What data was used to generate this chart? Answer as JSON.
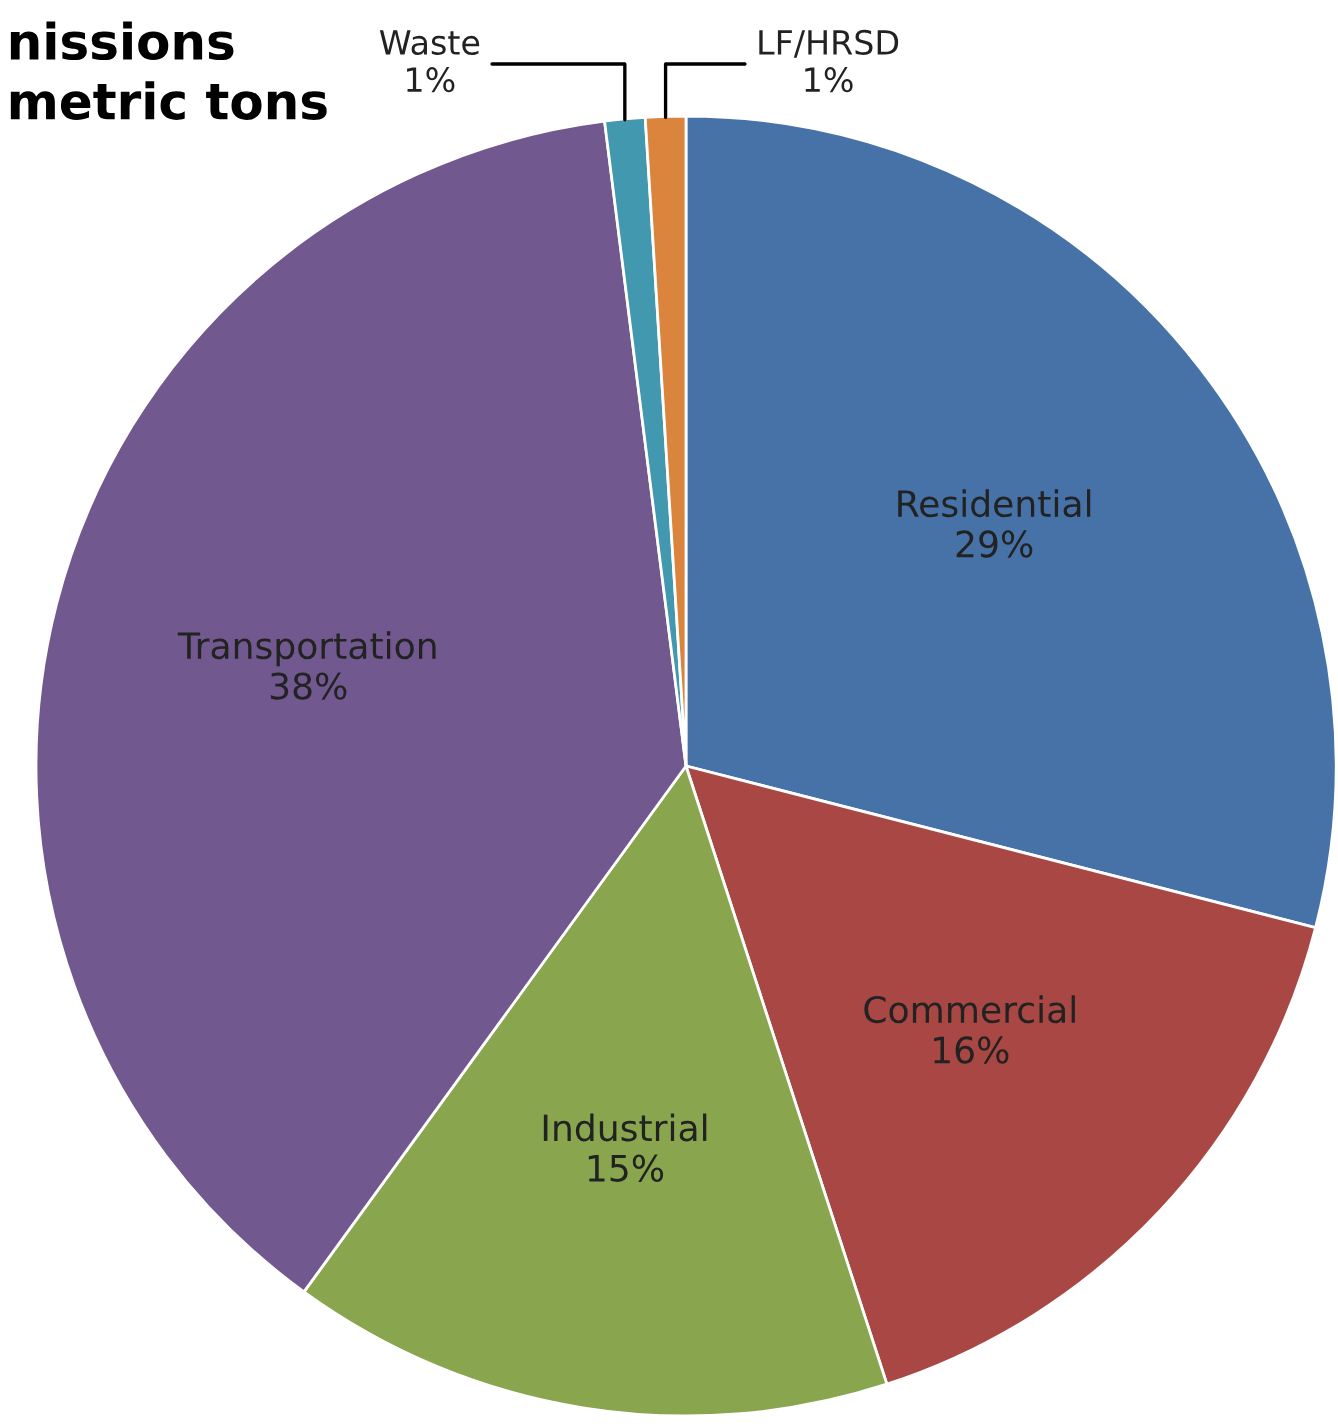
{
  "chart_data": {
    "type": "pie",
    "title": "nissions\nmetric tons",
    "categories": [
      "Residential",
      "Commercial",
      "Industrial",
      "Transportation",
      "Waste",
      "LF/HRSD"
    ],
    "values": [
      29,
      16,
      15,
      38,
      1,
      1
    ],
    "value_labels": [
      "29%",
      "16%",
      "15%",
      "38%",
      "1%",
      "1%"
    ],
    "colors": [
      "#4672a8",
      "#a84744",
      "#89a54e",
      "#71588f",
      "#4198af",
      "#db843d"
    ]
  }
}
